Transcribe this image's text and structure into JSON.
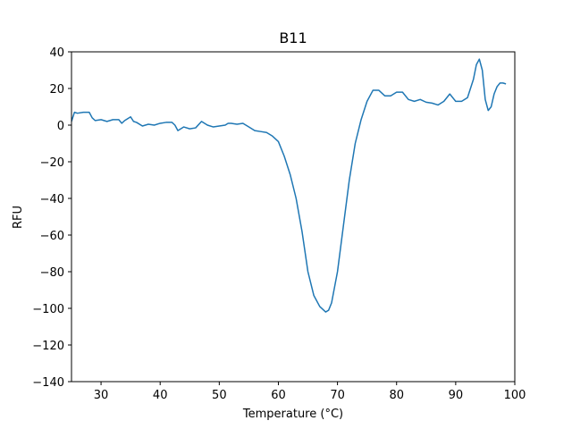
{
  "chart_data": {
    "type": "line",
    "title": "B11",
    "xlabel": "Temperature (°C)",
    "ylabel": "RFU",
    "xlim": [
      25,
      100
    ],
    "ylim": [
      -140,
      40
    ],
    "xticks": [
      30,
      40,
      50,
      60,
      70,
      80,
      90,
      100
    ],
    "yticks": [
      -140,
      -120,
      -100,
      -80,
      -60,
      -40,
      -20,
      0,
      20,
      40
    ],
    "grid": false,
    "legend": "none",
    "series": [
      {
        "color": "#1f77b4",
        "x": [
          25,
          25.5,
          26,
          27,
          28,
          28.5,
          29,
          30,
          31,
          32,
          33,
          33.5,
          34,
          35,
          35.5,
          36,
          37,
          38,
          39,
          40,
          41,
          42,
          42.5,
          43,
          44,
          45,
          46,
          47,
          48,
          49,
          50,
          51,
          51.5,
          52,
          53,
          54,
          55,
          56,
          57,
          58,
          59,
          60,
          61,
          62,
          63,
          64,
          65,
          66,
          67,
          68,
          68.5,
          69,
          70,
          71,
          72,
          73,
          74,
          75,
          76,
          77,
          78,
          79,
          80,
          81,
          82,
          83,
          84,
          85,
          86,
          87,
          88,
          89,
          90,
          91,
          92,
          93,
          93.5,
          94,
          94.5,
          95,
          95.5,
          96,
          96.5,
          97,
          97.5,
          98,
          98.5
        ],
        "y": [
          2,
          7,
          6.5,
          7,
          7,
          4,
          2.5,
          3,
          2,
          3,
          3,
          1,
          2.5,
          4.5,
          2,
          1.5,
          -0.5,
          0.5,
          0,
          1,
          1.5,
          1.5,
          0,
          -3,
          -1,
          -2,
          -1.5,
          2,
          0,
          -1,
          -0.5,
          0,
          1,
          1,
          0.5,
          1,
          -1,
          -3,
          -3.5,
          -4,
          -6,
          -9,
          -17,
          -27,
          -40,
          -58,
          -80,
          -93,
          -99,
          -102,
          -101,
          -97,
          -80,
          -55,
          -30,
          -10,
          3,
          13,
          19,
          19,
          16,
          16,
          18,
          18,
          14,
          13,
          14,
          12.5,
          12,
          11,
          13,
          17,
          13,
          13,
          15,
          25,
          33,
          36,
          30,
          14,
          8,
          10,
          17,
          21,
          23,
          23,
          22.5
        ]
      }
    ]
  }
}
